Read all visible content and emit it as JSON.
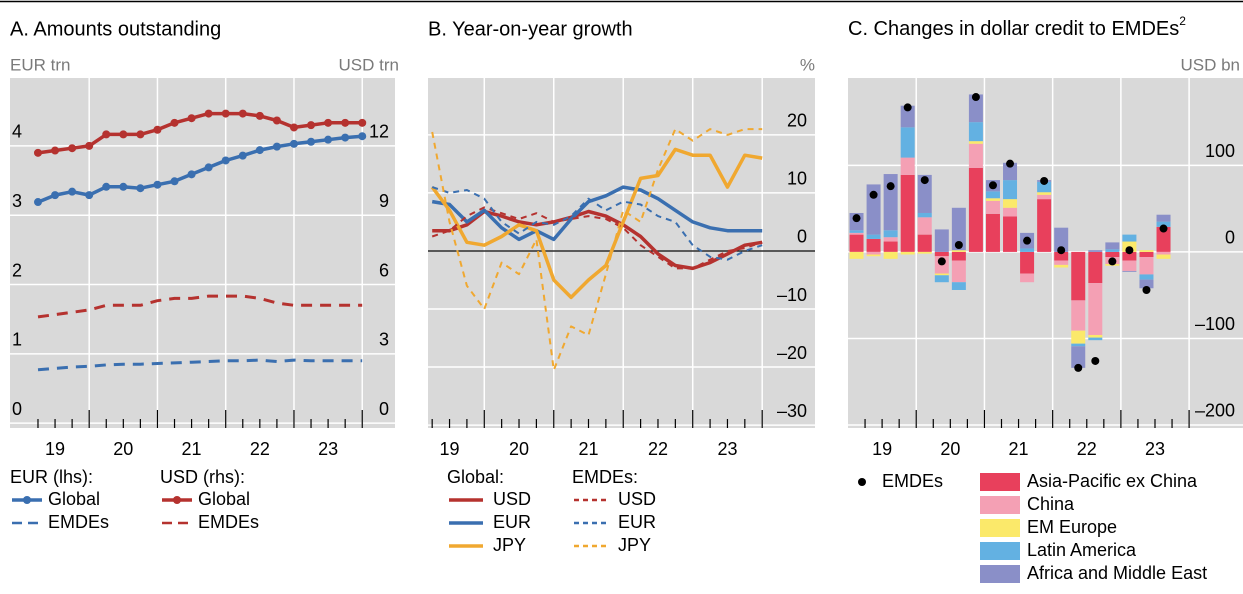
{
  "chart_data": [
    {
      "type": "line",
      "title": "A. Amounts outstanding",
      "ylabel": "EUR trn",
      "y2label": "USD trn",
      "ytick_side": "left",
      "x": [
        19.25,
        19.5,
        19.75,
        20,
        20.25,
        20.5,
        20.75,
        21,
        21.25,
        21.5,
        21.75,
        22,
        22.25,
        22.5,
        22.75,
        23,
        23.25,
        23.5,
        23.75,
        24
      ],
      "xlim": [
        18.84,
        24.48
      ],
      "xticks": [
        {
          "value": 19.5,
          "label": "19"
        },
        {
          "value": 20.5,
          "label": "20"
        },
        {
          "value": 21.5,
          "label": "21"
        },
        {
          "value": 22.5,
          "label": "22"
        },
        {
          "value": 23.5,
          "label": "23"
        }
      ],
      "ylim": [
        -0.07,
        4.98
      ],
      "yticks": [
        0,
        1,
        2,
        3,
        4
      ],
      "y2lim": [
        -0.21,
        14.94
      ],
      "y2ticks": [
        0,
        3,
        6,
        9,
        12
      ],
      "grid": true,
      "series": [
        {
          "name": "Global",
          "group": "EUR (lhs):",
          "color": "#3a6fb0",
          "dash": false,
          "markers": true,
          "values": [
            3.19,
            3.29,
            3.34,
            3.29,
            3.41,
            3.41,
            3.39,
            3.44,
            3.49,
            3.59,
            3.69,
            3.79,
            3.86,
            3.94,
            3.99,
            4.03,
            4.06,
            4.09,
            4.12,
            4.14
          ]
        },
        {
          "name": "EMDEs",
          "group": "EUR (lhs):",
          "color": "#3a6fb0",
          "dash": true,
          "markers": false,
          "values": [
            0.77,
            0.79,
            0.81,
            0.82,
            0.84,
            0.85,
            0.85,
            0.86,
            0.87,
            0.88,
            0.89,
            0.9,
            0.9,
            0.91,
            0.89,
            0.91,
            0.9,
            0.9,
            0.9,
            0.9
          ]
        },
        {
          "name": "Global",
          "group": "USD (rhs):",
          "color": "#b5322f",
          "dash": false,
          "markers": true,
          "axis": "y2",
          "values": [
            11.7,
            11.8,
            11.9,
            12.0,
            12.5,
            12.5,
            12.5,
            12.7,
            13.0,
            13.2,
            13.4,
            13.4,
            13.4,
            13.3,
            13.1,
            12.8,
            12.9,
            13.0,
            13.0,
            13.0
          ]
        },
        {
          "name": "EMDEs",
          "group": "USD (rhs):",
          "color": "#b5322f",
          "dash": true,
          "markers": false,
          "axis": "y2",
          "values": [
            4.6,
            4.7,
            4.8,
            4.9,
            5.1,
            5.1,
            5.1,
            5.3,
            5.4,
            5.4,
            5.5,
            5.5,
            5.5,
            5.4,
            5.2,
            5.1,
            5.1,
            5.1,
            5.1,
            5.1
          ]
        }
      ]
    },
    {
      "type": "line",
      "title": "B. Year-on-year growth",
      "ylabel": "%",
      "ytick_side": "right",
      "zero_line": true,
      "x": [
        19.25,
        19.5,
        19.75,
        20,
        20.25,
        20.5,
        20.75,
        21,
        21.25,
        21.5,
        21.75,
        22,
        22.25,
        22.5,
        22.75,
        23,
        23.25,
        23.5,
        23.75,
        24
      ],
      "xlim": [
        19.19,
        24.76
      ],
      "xticks": [
        {
          "value": 19.5,
          "label": "19"
        },
        {
          "value": 20.5,
          "label": "20"
        },
        {
          "value": 21.5,
          "label": "21"
        },
        {
          "value": 22.5,
          "label": "22"
        },
        {
          "value": 23.5,
          "label": "23"
        }
      ],
      "ylim": [
        -30.5,
        29.8
      ],
      "yticks": [
        20,
        10,
        0,
        {
          "value": -10,
          "label": "–10"
        },
        {
          "value": -20,
          "label": "–20"
        },
        {
          "value": -30,
          "label": "–30"
        }
      ],
      "grid": true,
      "series": [
        {
          "name": "USD",
          "group": "Global:",
          "color": "#b5322f",
          "dash": false,
          "values": [
            3.5,
            3.5,
            4.5,
            6.8,
            6,
            5,
            4.5,
            5,
            5.8,
            6.8,
            6,
            4.5,
            2.5,
            -0.5,
            -2.5,
            -3,
            -2,
            -0.5,
            1,
            1.5
          ]
        },
        {
          "name": "EUR",
          "group": "Global:",
          "color": "#3a6fb0",
          "dash": false,
          "values": [
            8.5,
            8,
            5,
            7,
            4,
            2,
            3.5,
            2,
            5.5,
            8.5,
            9.5,
            11,
            10.5,
            9,
            7,
            5,
            4,
            3.5,
            3.5,
            3.5
          ]
        },
        {
          "name": "JPY",
          "group": "Global:",
          "color": "#f0a830",
          "dash": false,
          "values": [
            11,
            7,
            1.5,
            1,
            2.5,
            4.5,
            3.5,
            -5,
            -8,
            -5,
            -2.5,
            5,
            12.5,
            13,
            17.5,
            16.5,
            16.5,
            11,
            16.5,
            16
          ]
        },
        {
          "name": "USD",
          "group": "EMDEs:",
          "color": "#b5322f",
          "dash": true,
          "values": [
            2.5,
            3.5,
            6,
            7.5,
            6.5,
            5.5,
            6.5,
            5,
            5.5,
            6,
            5.5,
            4,
            1,
            -1,
            -3,
            -3,
            -1.5,
            0,
            0.5,
            1.5
          ]
        },
        {
          "name": "EUR",
          "group": "EMDEs:",
          "color": "#3a6fb0",
          "dash": true,
          "values": [
            11,
            10,
            10.5,
            9,
            5,
            3,
            5,
            4.5,
            6,
            9,
            7,
            8.5,
            8,
            6,
            5,
            1,
            -1,
            -1.5,
            0,
            1
          ]
        },
        {
          "name": "JPY",
          "group": "EMDEs:",
          "color": "#f0a830",
          "dash": true,
          "values": [
            20.5,
            5,
            -6,
            -10,
            -2,
            -4,
            2,
            -20.5,
            -13,
            -14.5,
            -4,
            7,
            5,
            14,
            21,
            19,
            21,
            20,
            21,
            21
          ]
        }
      ]
    },
    {
      "type": "bar",
      "title": "C. Changes in dollar credit to EMDEs",
      "title_note": "2",
      "ylabel": "USD bn",
      "ytick_side": "right",
      "stacked": true,
      "x": [
        19.125,
        19.375,
        19.625,
        19.875,
        20.125,
        20.375,
        20.625,
        20.875,
        21.125,
        21.375,
        21.625,
        21.875,
        22.125,
        22.375,
        22.625,
        22.875,
        23.125,
        23.375,
        23.625
      ],
      "xlim": [
        19,
        24.79
      ],
      "xticks": [
        {
          "value": 19.5,
          "label": "19"
        },
        {
          "value": 20.5,
          "label": "20"
        },
        {
          "value": 21.5,
          "label": "21"
        },
        {
          "value": 22.5,
          "label": "22"
        },
        {
          "value": 23.5,
          "label": "23"
        }
      ],
      "ylim": [
        -203.5,
        201
      ],
      "yticks": [
        100,
        0,
        {
          "value": -100,
          "label": "–100"
        },
        {
          "value": -200,
          "label": "–200"
        }
      ],
      "grid": true,
      "series": [
        {
          "name": "Asia-Pacific ex China",
          "color": "#e8405c",
          "values": [
            20,
            15,
            12,
            89,
            20,
            -5,
            -10,
            97,
            44,
            41,
            -25,
            61,
            -10,
            -56,
            -36,
            -6,
            -10,
            -6,
            29
          ]
        },
        {
          "name": "China",
          "color": "#f4a0b4",
          "values": [
            2,
            -3,
            5,
            20,
            20,
            -20,
            -25,
            28,
            15,
            10,
            -10,
            5,
            -5,
            -35,
            -60,
            -8,
            -12,
            -20,
            -3
          ]
        },
        {
          "name": "EM Europe",
          "color": "#fbe96a",
          "values": [
            -8,
            -2,
            -8,
            -3,
            -2,
            -2,
            2,
            3,
            3,
            10,
            0,
            3,
            -3,
            -15,
            -3,
            -2,
            12,
            2,
            -5
          ]
        },
        {
          "name": "Latin America",
          "color": "#63b1e2",
          "values": [
            3,
            5,
            8,
            35,
            5,
            -8,
            -9,
            22,
            8,
            22,
            4,
            12,
            0,
            -3,
            -3,
            3,
            8,
            -6,
            6
          ]
        },
        {
          "name": "Africa and Middle East",
          "color": "#8a8fc8",
          "values": [
            20,
            58,
            65,
            25,
            44,
            26,
            49,
            32,
            13,
            20,
            18,
            2,
            28,
            -25,
            2,
            8,
            -1,
            -10,
            8
          ]
        }
      ],
      "points": {
        "name": "EMDEs",
        "color": "#000000",
        "values": [
          39,
          66,
          76,
          167,
          83,
          -11,
          8,
          179,
          77,
          102,
          13,
          82,
          2,
          -134,
          -126,
          -11,
          2,
          -44,
          27
        ]
      }
    }
  ]
}
